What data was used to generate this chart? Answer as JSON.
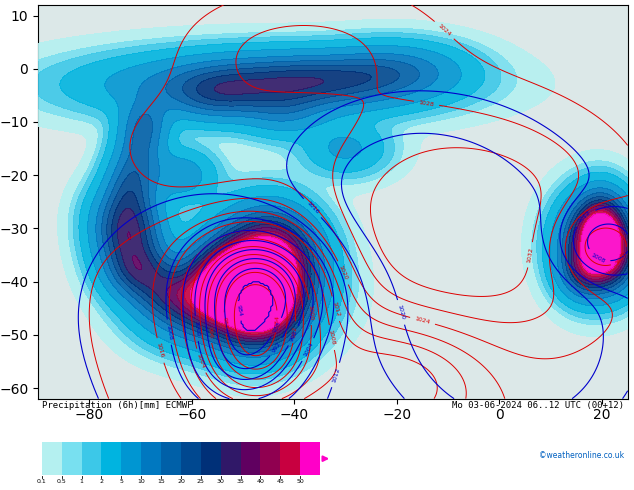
{
  "title": "Precipitation (6h)[mm] ECMWF",
  "datetime_str": "Mo 03-06-2024 06..12 UTC (00+12)",
  "credit": "©weatheronline.co.uk",
  "fig_width": 6.34,
  "fig_height": 4.9,
  "dpi": 100,
  "lon_min": -90,
  "lon_max": 25,
  "lat_min": -62,
  "lat_max": 12,
  "grid_lons": [
    -80,
    -70,
    -60,
    -50,
    -40,
    -30,
    -20,
    -10,
    0,
    10,
    20
  ],
  "grid_lats": [
    -60,
    -50,
    -40,
    -30,
    -20,
    -10,
    0,
    10
  ],
  "land_color": "#c8e896",
  "ocean_color": "#e0e8e8",
  "grid_color": "#999999",
  "slp_color": "#dd0000",
  "z850_color": "#0000cc",
  "background_color": "#ffffff",
  "colorbar_values": [
    "0.1",
    "0.5",
    "1",
    "2",
    "5",
    "10",
    "15",
    "20",
    "25",
    "30",
    "35",
    "40",
    "45",
    "50"
  ],
  "colorbar_colors": [
    "#b4f0f0",
    "#78e0f0",
    "#3cc8e8",
    "#00b4e0",
    "#0096d2",
    "#0078c0",
    "#0060a8",
    "#004890",
    "#003078",
    "#301868",
    "#600060",
    "#900050",
    "#c80040",
    "#ff00c8"
  ],
  "precip_levels": [
    0.1,
    0.5,
    1,
    2,
    5,
    10,
    15,
    20,
    25,
    30,
    35,
    40,
    45,
    50
  ],
  "precip_colors": [
    "#b4f0f0",
    "#78e0f0",
    "#3cc8e8",
    "#00b4e0",
    "#0096d2",
    "#0078c0",
    "#0060a8",
    "#004890",
    "#003078",
    "#301868",
    "#600060",
    "#900050",
    "#c80040",
    "#ff00c8"
  ]
}
